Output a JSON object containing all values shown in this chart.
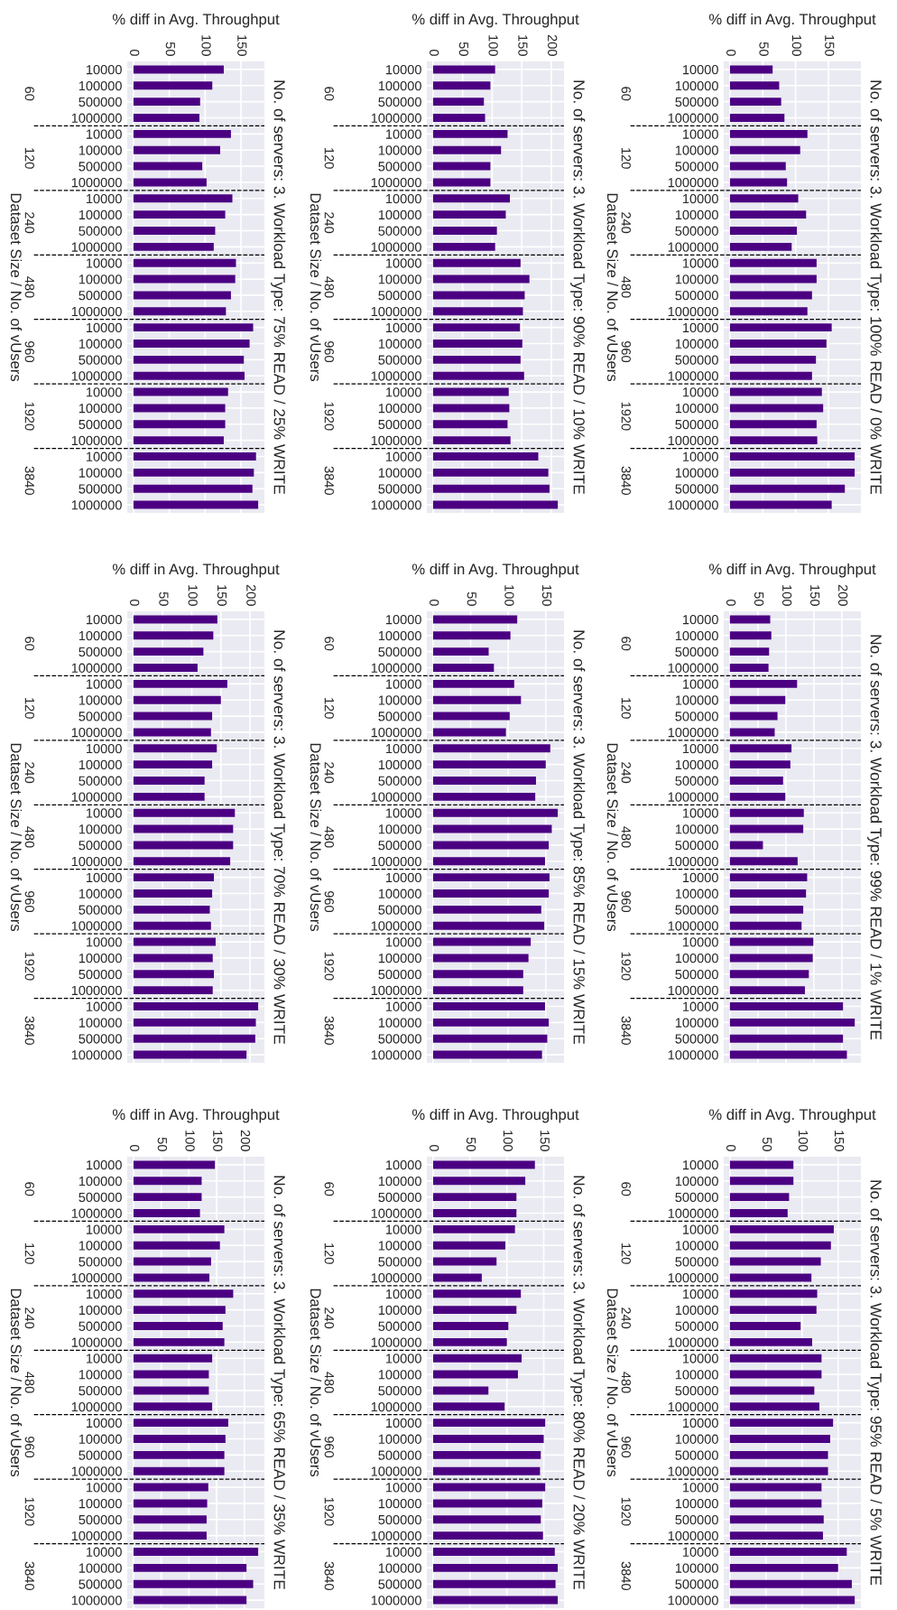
{
  "chart_data": [
    {
      "type": "bar",
      "orientation": "horizontal",
      "title": "No. of servers: 3. Workload Type: 100% READ / 0% WRITE",
      "xlabel": "% diff in Avg. Throughput",
      "ylabel": "Dataset Size / No. of vUsers",
      "categories": [
        "10000",
        "100000",
        "500000",
        "1000000",
        "10000",
        "100000",
        "500000",
        "1000000",
        "10000",
        "100000",
        "500000",
        "1000000",
        "10000",
        "100000",
        "500000",
        "1000000",
        "10000",
        "100000",
        "500000",
        "1000000",
        "10000",
        "100000",
        "500000",
        "1000000",
        "10000",
        "100000",
        "500000",
        "1000000"
      ],
      "annotations": [
        "60",
        "120",
        "240",
        "480",
        "960",
        "1920",
        "3840"
      ],
      "values": [
        65,
        75,
        78,
        83,
        118,
        107,
        85,
        87,
        104,
        116,
        102,
        94,
        132,
        132,
        125,
        118,
        155,
        147,
        131,
        125,
        140,
        142,
        132,
        133,
        190,
        190,
        175,
        155
      ],
      "color": "#4b0082",
      "xlim": [
        -9.5,
        199.5
      ],
      "xticks": [
        0,
        50,
        100,
        150
      ],
      "grid": true
    },
    {
      "type": "bar",
      "orientation": "horizontal",
      "title": "No. of servers: 3. Workload Type: 99% READ / 1% WRITE",
      "xlabel": "% diff in Avg. Throughput",
      "ylabel": "Dataset Size / No. of vUsers",
      "categories": [
        "10000",
        "100000",
        "500000",
        "1000000",
        "10000",
        "100000",
        "500000",
        "1000000",
        "10000",
        "100000",
        "500000",
        "1000000",
        "10000",
        "100000",
        "500000",
        "1000000",
        "10000",
        "100000",
        "500000",
        "1000000",
        "10000",
        "100000",
        "500000",
        "1000000",
        "10000",
        "100000",
        "500000",
        "1000000"
      ],
      "annotations": [
        "60",
        "120",
        "240",
        "480",
        "960",
        "1920",
        "3840"
      ],
      "values": [
        72,
        74,
        70,
        69,
        120,
        99,
        85,
        80,
        110,
        108,
        95,
        99,
        132,
        131,
        59,
        121,
        138,
        136,
        131,
        128,
        149,
        148,
        141,
        134,
        202,
        223,
        202,
        209
      ],
      "color": "#4b0082",
      "xlim": [
        -11,
        234
      ],
      "xticks": [
        0,
        50,
        100,
        150,
        200
      ],
      "grid": true
    },
    {
      "type": "bar",
      "orientation": "horizontal",
      "title": "No. of servers: 3. Workload Type: 95% READ / 5% WRITE",
      "xlabel": "% diff in Avg. Throughput",
      "ylabel": "Dataset Size / No. of vUsers",
      "categories": [
        "10000",
        "100000",
        "500000",
        "1000000",
        "10000",
        "100000",
        "500000",
        "1000000",
        "10000",
        "100000",
        "500000",
        "1000000",
        "10000",
        "100000",
        "500000",
        "1000000",
        "10000",
        "100000",
        "500000",
        "1000000",
        "10000",
        "100000",
        "500000",
        "1000000",
        "10000",
        "100000",
        "500000",
        "1000000"
      ],
      "annotations": [
        "60",
        "120",
        "240",
        "480",
        "960",
        "1920",
        "3840"
      ],
      "values": [
        88,
        88,
        82,
        80,
        144,
        140,
        126,
        113,
        121,
        120,
        98,
        114,
        127,
        127,
        117,
        124,
        143,
        139,
        136,
        136,
        127,
        127,
        130,
        129,
        162,
        150,
        169,
        173
      ],
      "color": "#4b0082",
      "xlim": [
        -8.6,
        181.6
      ],
      "xticks": [
        0,
        50,
        100,
        150
      ],
      "grid": true
    },
    {
      "type": "bar",
      "orientation": "horizontal",
      "title": "No. of servers: 3. Workload Type: 90% READ / 10% WRITE",
      "xlabel": "% diff in Avg. Throughput",
      "ylabel": "Dataset Size / No. of vUsers",
      "categories": [
        "10000",
        "100000",
        "500000",
        "1000000",
        "10000",
        "100000",
        "500000",
        "1000000",
        "10000",
        "100000",
        "500000",
        "1000000",
        "10000",
        "100000",
        "500000",
        "1000000",
        "10000",
        "100000",
        "500000",
        "1000000",
        "10000",
        "100000",
        "500000",
        "1000000",
        "10000",
        "100000",
        "500000",
        "1000000"
      ],
      "annotations": [
        "60",
        "120",
        "240",
        "480",
        "960",
        "1920",
        "3840"
      ],
      "values": [
        105,
        97,
        86,
        88,
        126,
        115,
        97,
        97,
        130,
        123,
        108,
        105,
        148,
        163,
        155,
        152,
        147,
        151,
        148,
        154,
        128,
        129,
        126,
        131,
        178,
        195,
        197,
        211
      ],
      "color": "#4b0082",
      "xlim": [
        -10.5,
        221.5
      ],
      "xticks": [
        0,
        50,
        100,
        150,
        200
      ],
      "grid": true
    },
    {
      "type": "bar",
      "orientation": "horizontal",
      "title": "No. of servers: 3. Workload Type: 85% READ / 15% WRITE",
      "xlabel": "% diff in Avg. Throughput",
      "ylabel": "Dataset Size / No. of vUsers",
      "categories": [
        "10000",
        "100000",
        "500000",
        "1000000",
        "10000",
        "100000",
        "500000",
        "1000000",
        "10000",
        "100000",
        "500000",
        "1000000",
        "10000",
        "100000",
        "500000",
        "1000000",
        "10000",
        "100000",
        "500000",
        "1000000",
        "10000",
        "100000",
        "500000",
        "1000000",
        "10000",
        "100000",
        "500000",
        "1000000"
      ],
      "annotations": [
        "60",
        "120",
        "240",
        "480",
        "960",
        "1920",
        "3840"
      ],
      "values": [
        112,
        103,
        74,
        81,
        108,
        117,
        102,
        97,
        156,
        150,
        137,
        136,
        166,
        158,
        154,
        149,
        155,
        154,
        144,
        148,
        130,
        127,
        120,
        120,
        149,
        154,
        152,
        145
      ],
      "color": "#4b0082",
      "xlim": [
        -8.3,
        174.3
      ],
      "xticks": [
        0,
        50,
        100,
        150
      ],
      "grid": true
    },
    {
      "type": "bar",
      "orientation": "horizontal",
      "title": "No. of servers: 3. Workload Type: 80% READ / 20% WRITE",
      "xlabel": "% diff in Avg. Throughput",
      "ylabel": "Dataset Size / No. of vUsers",
      "categories": [
        "10000",
        "100000",
        "500000",
        "1000000",
        "10000",
        "100000",
        "500000",
        "1000000",
        "10000",
        "100000",
        "500000",
        "1000000",
        "10000",
        "100000",
        "500000",
        "1000000",
        "10000",
        "100000",
        "500000",
        "1000000",
        "10000",
        "100000",
        "500000",
        "1000000",
        "10000",
        "100000",
        "500000",
        "1000000"
      ],
      "annotations": [
        "60",
        "120",
        "240",
        "480",
        "960",
        "1920",
        "3840"
      ],
      "values": [
        138,
        125,
        113,
        113,
        111,
        98,
        86,
        66,
        119,
        113,
        102,
        100,
        120,
        115,
        75,
        97,
        152,
        150,
        146,
        145,
        152,
        148,
        146,
        149,
        165,
        169,
        166,
        169
      ],
      "color": "#4b0082",
      "xlim": [
        -8.5,
        177.5
      ],
      "xticks": [
        0,
        50,
        100,
        150
      ],
      "grid": true
    },
    {
      "type": "bar",
      "orientation": "horizontal",
      "title": "No. of servers: 3. Workload Type: 75% READ / 25% WRITE",
      "xlabel": "% diff in Avg. Throughput",
      "ylabel": "Dataset Size / No. of vUsers",
      "categories": [
        "10000",
        "100000",
        "500000",
        "1000000",
        "10000",
        "100000",
        "500000",
        "1000000",
        "10000",
        "100000",
        "500000",
        "1000000",
        "10000",
        "100000",
        "500000",
        "1000000",
        "10000",
        "100000",
        "500000",
        "1000000",
        "10000",
        "100000",
        "500000",
        "1000000",
        "10000",
        "100000",
        "500000",
        "1000000"
      ],
      "annotations": [
        "60",
        "120",
        "240",
        "480",
        "960",
        "1920",
        "3840"
      ],
      "values": [
        126,
        110,
        93,
        92,
        136,
        121,
        96,
        102,
        138,
        128,
        114,
        112,
        143,
        142,
        136,
        129,
        167,
        162,
        154,
        155,
        132,
        128,
        128,
        126,
        171,
        168,
        166,
        174
      ],
      "color": "#4b0082",
      "xlim": [
        -8.7,
        182.7
      ],
      "xticks": [
        0,
        50,
        100,
        150
      ],
      "grid": true
    },
    {
      "type": "bar",
      "orientation": "horizontal",
      "title": "No. of servers: 3. Workload Type: 70% READ / 30% WRITE",
      "xlabel": "% diff in Avg. Throughput",
      "ylabel": "Dataset Size / No. of vUsers",
      "categories": [
        "10000",
        "100000",
        "500000",
        "1000000",
        "10000",
        "100000",
        "500000",
        "1000000",
        "10000",
        "100000",
        "500000",
        "1000000",
        "10000",
        "100000",
        "500000",
        "1000000",
        "10000",
        "100000",
        "500000",
        "1000000",
        "10000",
        "100000",
        "500000",
        "1000000",
        "10000",
        "100000",
        "500000",
        "1000000"
      ],
      "annotations": [
        "60",
        "120",
        "240",
        "480",
        "960",
        "1920",
        "3840"
      ],
      "values": [
        144,
        137,
        120,
        110,
        161,
        150,
        135,
        133,
        143,
        135,
        122,
        122,
        174,
        171,
        171,
        166,
        138,
        135,
        131,
        133,
        141,
        136,
        138,
        136,
        214,
        210,
        209,
        194
      ],
      "color": "#4b0082",
      "xlim": [
        -10.7,
        224.7
      ],
      "xticks": [
        0,
        50,
        100,
        150,
        200
      ],
      "grid": true
    },
    {
      "type": "bar",
      "orientation": "horizontal",
      "title": "No. of servers: 3. Workload Type: 65% READ / 35% WRITE",
      "xlabel": "% diff in Avg. Throughput",
      "ylabel": "Dataset Size / No. of vUsers",
      "categories": [
        "10000",
        "100000",
        "500000",
        "1000000",
        "10000",
        "100000",
        "500000",
        "1000000",
        "10000",
        "100000",
        "500000",
        "1000000",
        "10000",
        "100000",
        "500000",
        "1000000",
        "10000",
        "100000",
        "500000",
        "1000000",
        "10000",
        "100000",
        "500000",
        "1000000",
        "10000",
        "100000",
        "500000",
        "1000000"
      ],
      "annotations": [
        "60",
        "120",
        "240",
        "480",
        "960",
        "1920",
        "3840"
      ],
      "values": [
        147,
        123,
        123,
        120,
        164,
        156,
        140,
        137,
        180,
        166,
        161,
        164,
        142,
        136,
        136,
        142,
        171,
        166,
        164,
        164,
        135,
        133,
        132,
        132,
        225,
        204,
        216,
        204
      ],
      "color": "#4b0082",
      "xlim": [
        -11.3,
        236.3
      ],
      "xticks": [
        0,
        50,
        100,
        150,
        200
      ],
      "grid": true
    }
  ]
}
